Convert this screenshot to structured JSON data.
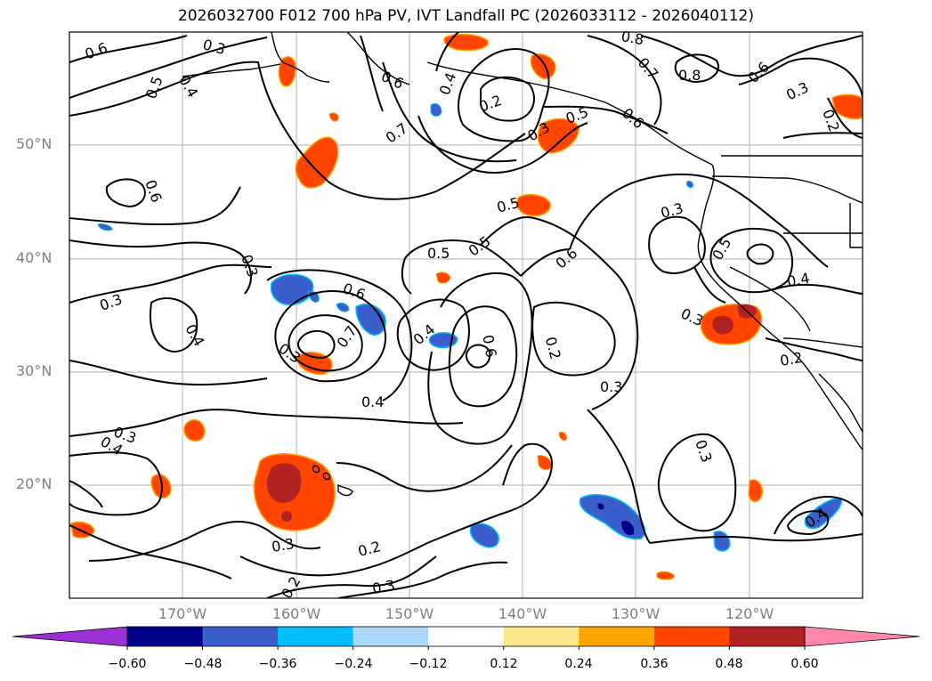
{
  "title": "2026032700 F012 700 hPa PV, IVT Landfall PC (2026033112 - 2026040112)",
  "latitude_labels": [
    "50°N",
    "40°N",
    "30°N",
    "20°N"
  ],
  "longitude_labels": [
    "170°W",
    "160°W",
    "150°W",
    "140°W",
    "130°W",
    "120°W"
  ],
  "contour_labels": [
    "0.6",
    "0.3",
    "0.5",
    "0.4",
    "0.6",
    "0.7",
    "0.4",
    "0.2",
    "0.3",
    "0.5",
    "0.6",
    "0.8",
    "0.7",
    "0.8",
    "0.6",
    "0.3",
    "0.2",
    "0.6",
    "0.5",
    "0.3",
    "0.5",
    "0.5",
    "0.6",
    "0.3",
    "0.4",
    "0.5",
    "0.3",
    "0.3",
    "0.4",
    "0.6",
    "0.7",
    "0.4",
    "0.6",
    "0.2",
    "0.3",
    "0.2",
    "0.4",
    "0.3",
    "0.4",
    "0.3",
    "0.3",
    "0.3",
    "0.2",
    "0.3",
    "0.4",
    "0.2"
  ],
  "colorbar": {
    "ticks": [
      "−0.60",
      "−0.48",
      "−0.36",
      "−0.24",
      "−0.12",
      "0.12",
      "0.24",
      "0.36",
      "0.48",
      "0.60"
    ],
    "colors": {
      "under": "#9b30d6",
      "bins": [
        "#00008b",
        "#3a5fcd",
        "#00bfff",
        "#add8f7",
        "#ffffff",
        "#fce78a",
        "#ffa500",
        "#ff4500",
        "#b22222"
      ],
      "over": "#ff88aa"
    }
  },
  "map_frame": {
    "lon_range": [
      "180°W",
      "110°W"
    ],
    "lat_range": [
      "10°N",
      "60°N"
    ]
  }
}
